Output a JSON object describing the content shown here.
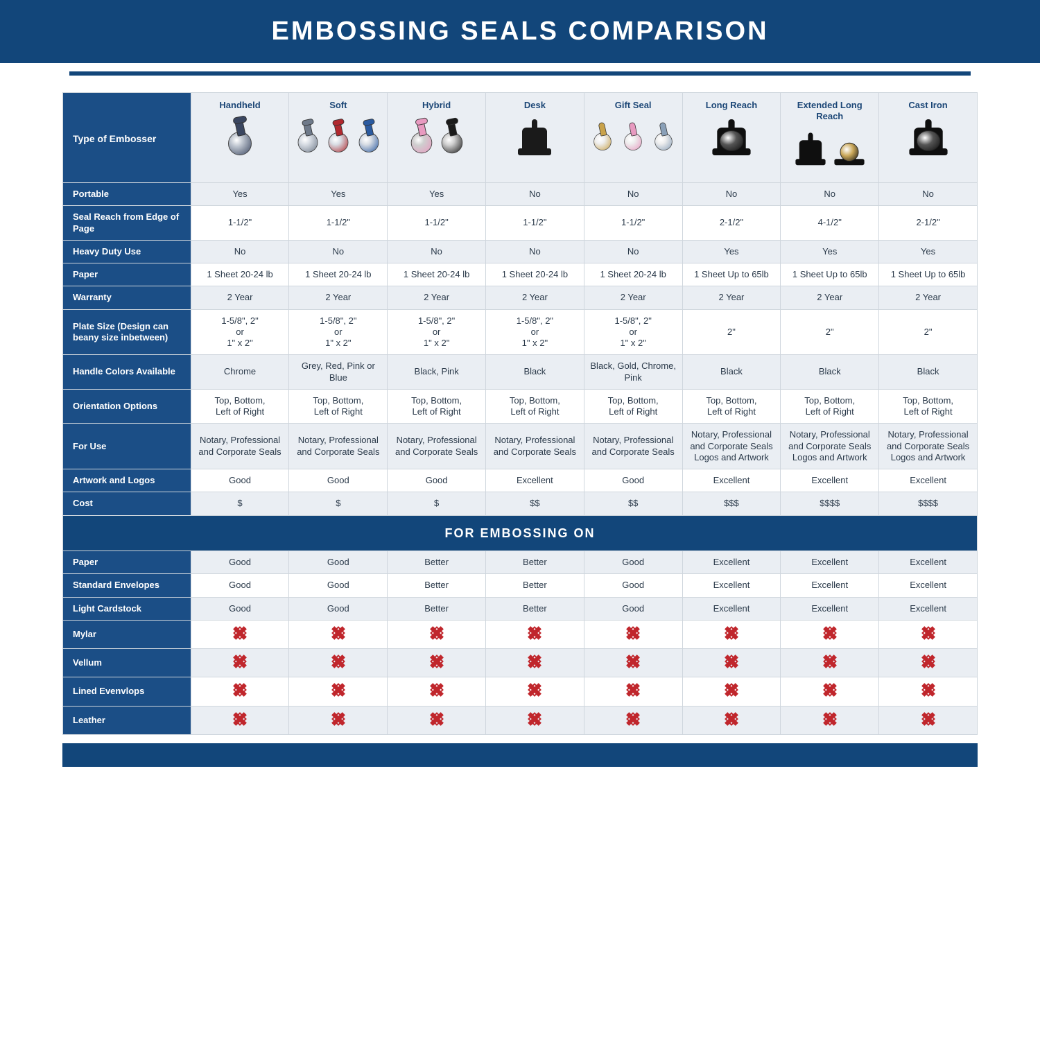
{
  "colors": {
    "banner_bg": "#12467a",
    "header_bg": "#1b4e86",
    "row_alt_bg": "#eaeef3",
    "border": "#cfd6dd",
    "text": "#2b3a4a",
    "x_red": "#c0262c"
  },
  "title": "EMBOSSING SEALS COMPARISON",
  "corner_label": "Type of Embosser",
  "section2_title": "FOR EMBOSSING ON",
  "columns": [
    {
      "label": "Handheld",
      "icon": "handheld",
      "icon_colors": [
        "#3a4660"
      ]
    },
    {
      "label": "Soft",
      "icon": "soft",
      "icon_colors": [
        "#6f7a8a",
        "#b1282e",
        "#2a5aa0"
      ]
    },
    {
      "label": "Hybrid",
      "icon": "hybrid",
      "icon_colors": [
        "#e89ac0",
        "#1a1a1a"
      ]
    },
    {
      "label": "Desk",
      "icon": "desk",
      "icon_colors": [
        "#1a1a1a"
      ]
    },
    {
      "label": "Gift Seal",
      "icon": "gift",
      "icon_colors": [
        "#c9a24a",
        "#e89ac0",
        "#8aa0b8"
      ]
    },
    {
      "label": "Long Reach",
      "icon": "longreach",
      "icon_colors": [
        "#0f0f0f"
      ]
    },
    {
      "label": "Extended Long Reach",
      "icon": "extlong",
      "icon_colors": [
        "#0f0f0f",
        "#caa85a"
      ]
    },
    {
      "label": "Cast Iron",
      "icon": "castiron",
      "icon_colors": [
        "#0f0f0f"
      ]
    }
  ],
  "rows": [
    {
      "label": "Portable",
      "cells": [
        "Yes",
        "Yes",
        "Yes",
        "No",
        "No",
        "No",
        "No",
        "No"
      ]
    },
    {
      "label": "Seal Reach from Edge of Page",
      "cells": [
        "1-1/2\"",
        "1-1/2\"",
        "1-1/2\"",
        "1-1/2\"",
        "1-1/2\"",
        "2-1/2\"",
        "4-1/2\"",
        "2-1/2\""
      ]
    },
    {
      "label": "Heavy Duty Use",
      "cells": [
        "No",
        "No",
        "No",
        "No",
        "No",
        "Yes",
        "Yes",
        "Yes"
      ]
    },
    {
      "label": "Paper",
      "cells": [
        "1 Sheet 20-24 lb",
        "1 Sheet 20-24 lb",
        "1 Sheet 20-24 lb",
        "1 Sheet 20-24 lb",
        "1 Sheet 20-24 lb",
        "1 Sheet Up to 65lb",
        "1 Sheet Up to 65lb",
        "1 Sheet Up to 65lb"
      ]
    },
    {
      "label": "Warranty",
      "cells": [
        "2 Year",
        "2 Year",
        "2 Year",
        "2 Year",
        "2 Year",
        "2 Year",
        "2 Year",
        "2 Year"
      ]
    },
    {
      "label": "Plate Size (Design can beany size inbetween)",
      "cells": [
        "1-5/8\", 2\"\nor\n1\" x 2\"",
        "1-5/8\", 2\"\nor\n1\" x 2\"",
        "1-5/8\", 2\"\nor\n1\" x 2\"",
        "1-5/8\", 2\"\nor\n1\" x 2\"",
        "1-5/8\", 2\"\nor\n1\" x 2\"",
        "2\"",
        "2\"",
        "2\""
      ]
    },
    {
      "label": "Handle Colors Available",
      "cells": [
        "Chrome",
        "Grey, Red, Pink or Blue",
        "Black, Pink",
        "Black",
        "Black, Gold, Chrome, Pink",
        "Black",
        "Black",
        "Black"
      ]
    },
    {
      "label": "Orientation Options",
      "cells": [
        "Top, Bottom,\nLeft of Right",
        "Top, Bottom,\nLeft of Right",
        "Top, Bottom,\nLeft of Right",
        "Top, Bottom,\nLeft of Right",
        "Top, Bottom,\nLeft of Right",
        "Top, Bottom,\nLeft of Right",
        "Top, Bottom,\nLeft of Right",
        "Top, Bottom,\nLeft of Right"
      ]
    },
    {
      "label": "For Use",
      "cells": [
        "Notary, Professional and Corporate Seals",
        "Notary, Professional and Corporate Seals",
        "Notary, Professional and Corporate Seals",
        "Notary, Professional and Corporate Seals",
        "Notary, Professional and Corporate Seals",
        "Notary, Professional and Corporate Seals Logos and Artwork",
        "Notary, Professional and Corporate Seals Logos and Artwork",
        "Notary, Professional and Corporate Seals Logos and Artwork"
      ]
    },
    {
      "label": "Artwork and Logos",
      "cells": [
        "Good",
        "Good",
        "Good",
        "Excellent",
        "Good",
        "Excellent",
        "Excellent",
        "Excellent"
      ]
    },
    {
      "label": "Cost",
      "cells": [
        "$",
        "$",
        "$",
        "$$",
        "$$",
        "$$$",
        "$$$$",
        "$$$$"
      ]
    }
  ],
  "rows2": [
    {
      "label": "Paper",
      "cells": [
        "Good",
        "Good",
        "Better",
        "Better",
        "Good",
        "Excellent",
        "Excellent",
        "Excellent"
      ]
    },
    {
      "label": "Standard Envelopes",
      "cells": [
        "Good",
        "Good",
        "Better",
        "Better",
        "Good",
        "Excellent",
        "Excellent",
        "Excellent"
      ]
    },
    {
      "label": "Light Cardstock",
      "cells": [
        "Good",
        "Good",
        "Better",
        "Better",
        "Good",
        "Excellent",
        "Excellent",
        "Excellent"
      ]
    },
    {
      "label": "Mylar",
      "cells": [
        "X",
        "X",
        "X",
        "X",
        "X",
        "X",
        "X",
        "X"
      ]
    },
    {
      "label": "Vellum",
      "cells": [
        "X",
        "X",
        "X",
        "X",
        "X",
        "X",
        "X",
        "X"
      ]
    },
    {
      "label": "Lined Evenvlops",
      "cells": [
        "X",
        "X",
        "X",
        "X",
        "X",
        "X",
        "X",
        "X"
      ]
    },
    {
      "label": "Leather",
      "cells": [
        "X",
        "X",
        "X",
        "X",
        "X",
        "X",
        "X",
        "X"
      ]
    }
  ]
}
